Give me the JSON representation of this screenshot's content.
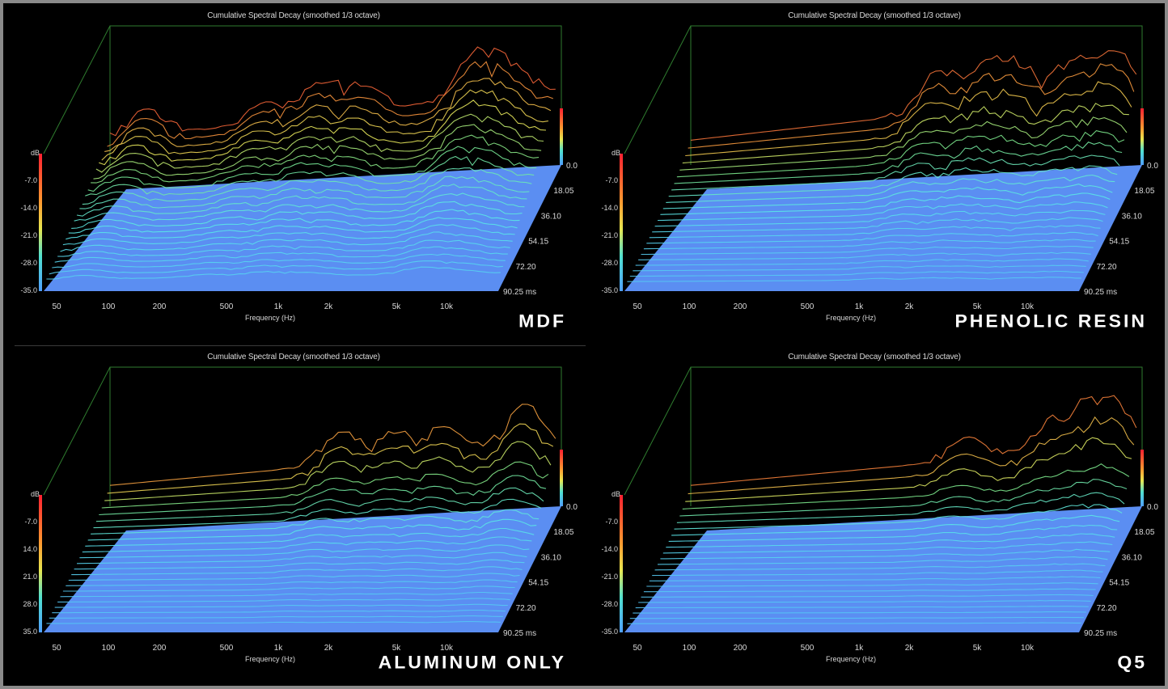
{
  "chart_data": [
    {
      "type": "waterfall-3d",
      "title": "Cumulative Spectral Decay (smoothed 1/3 octave)",
      "label": "MDF",
      "xlabel": "Frequency (Hz)",
      "zlabel": "dB",
      "x_ticks": [
        "50",
        "100",
        "200",
        "500",
        "1k",
        "2k",
        "5k",
        "10k"
      ],
      "y_ticks": [
        "-7.0",
        "-14.0",
        "-21.0",
        "-28.0",
        "-35.0"
      ],
      "time_ticks": [
        "0.0",
        "18.05",
        "36.10",
        "54.15",
        "72.20",
        "90.25 ms"
      ],
      "decay": 0.85
    },
    {
      "type": "waterfall-3d",
      "title": "Cumulative Spectral Decay (smoothed 1/3 octave)",
      "label": "PHENOLIC RESIN",
      "xlabel": "Frequency (Hz)",
      "zlabel": "dB",
      "x_ticks": [
        "50",
        "100",
        "200",
        "500",
        "1k",
        "2k",
        "5k",
        "10k"
      ],
      "y_ticks": [
        "-7.0",
        "-14.0",
        "-21.0",
        "-28.0",
        "-35.0"
      ],
      "time_ticks": [
        "0.0",
        "18.05",
        "36.10",
        "54.15",
        "72.20",
        "90.25 ms"
      ],
      "decay": 0.6
    },
    {
      "type": "waterfall-3d",
      "title": "Cumulative Spectral Decay (smoothed 1/3 octave)",
      "label": "ALUMINUM ONLY",
      "xlabel": "Frequency (Hz)",
      "zlabel": "dB",
      "x_ticks": [
        "50",
        "100",
        "200",
        "500",
        "1k",
        "2k",
        "5k",
        "10k"
      ],
      "y_ticks": [
        "-7.0",
        "14.0",
        "21.0",
        "28.0",
        "35.0"
      ],
      "time_ticks": [
        "0.0",
        "18.05",
        "36.10",
        "54.15",
        "72.20",
        "90.25 ms"
      ],
      "decay": 0.45
    },
    {
      "type": "waterfall-3d",
      "title": "Cumulative Spectral Decay (smoothed 1/3 octave)",
      "label": "Q5",
      "xlabel": "Frequency (Hz)",
      "zlabel": "dB",
      "x_ticks": [
        "50",
        "100",
        "200",
        "500",
        "1k",
        "2k",
        "5k",
        "10k"
      ],
      "y_ticks": [
        "-7.0",
        "-14.0",
        "-21.0",
        "-28.0",
        "-35.0"
      ],
      "time_ticks": [
        "0.0",
        "18.05",
        "36.10",
        "54.15",
        "72.20",
        "90.25 ms"
      ],
      "decay": 0.25
    }
  ],
  "colors": {
    "floor": "#5b8ef2",
    "frame": "#2f7d2f",
    "text": "#d8d8d8",
    "label": "#ffffff"
  }
}
